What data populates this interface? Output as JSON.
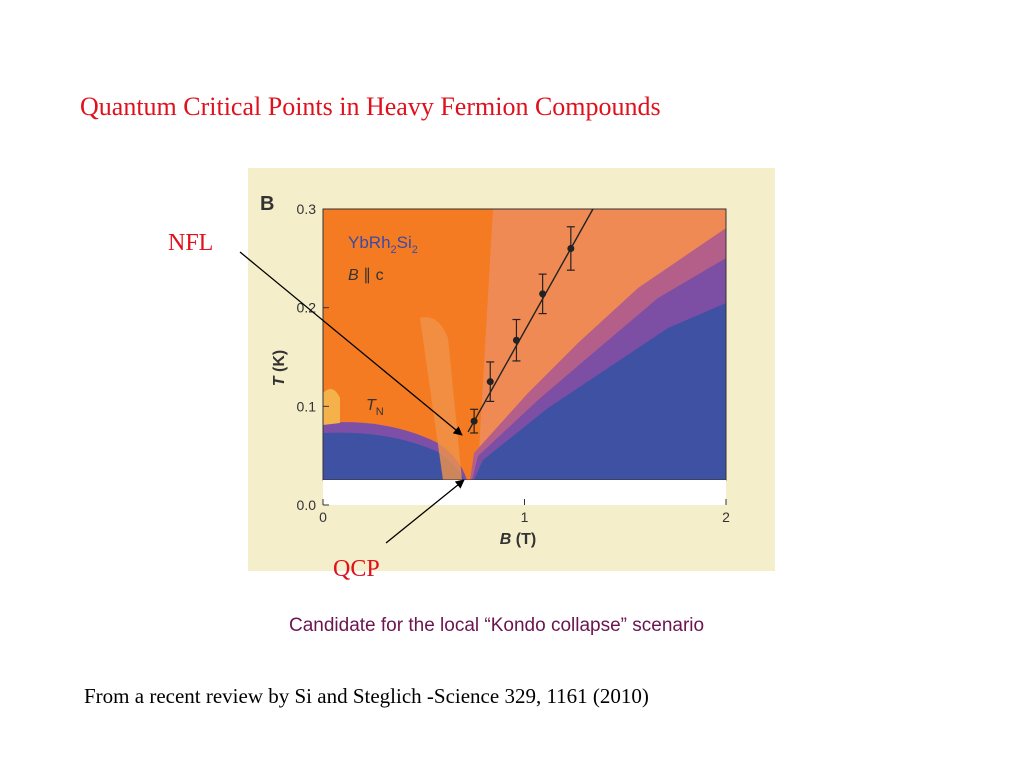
{
  "slide": {
    "title": "Quantum Critical Points in Heavy Fermion Compounds",
    "caption": "Candidate for the local “Kondo collapse” scenario",
    "reference": "From a recent review by Si and Steglich -Science 329, 1161 (2010)"
  },
  "callouts": {
    "nfl": "NFL",
    "qcp": "QCP"
  },
  "figure": {
    "panel_letter": "B",
    "compound": {
      "base": "YbRh",
      "sub1": "2",
      "mid": "Si",
      "sub2": "2"
    },
    "field_direction": {
      "b": "B",
      "rest": " ∥ c"
    },
    "tn_label": {
      "t": "T",
      "sub": "N"
    },
    "xlabel": {
      "var": "B",
      "unit": " (T)"
    },
    "ylabel": {
      "var": "T",
      "unit": " (K)"
    },
    "x_ticks": [
      "0",
      "1",
      "2"
    ],
    "y_ticks": [
      "0.0",
      "0.1",
      "0.2",
      "0.3"
    ]
  },
  "chart_data": {
    "type": "scatter",
    "xlabel": "B (T)",
    "ylabel": "T (K)",
    "xlim": [
      0,
      2
    ],
    "ylim": [
      0,
      0.3
    ],
    "series": [
      {
        "points": [
          {
            "x": 0.75,
            "y": 0.085,
            "err": 0.012
          },
          {
            "x": 0.83,
            "y": 0.125,
            "err": 0.02
          },
          {
            "x": 0.96,
            "y": 0.167,
            "err": 0.021
          },
          {
            "x": 1.09,
            "y": 0.214,
            "err": 0.02
          },
          {
            "x": 1.23,
            "y": 0.26,
            "err": 0.022
          }
        ]
      }
    ],
    "grid": false,
    "colors": {
      "high_t": "#f47b22",
      "low_t": "#3f51a3",
      "crossover": "#8b4fa6",
      "line": "#222222"
    }
  }
}
